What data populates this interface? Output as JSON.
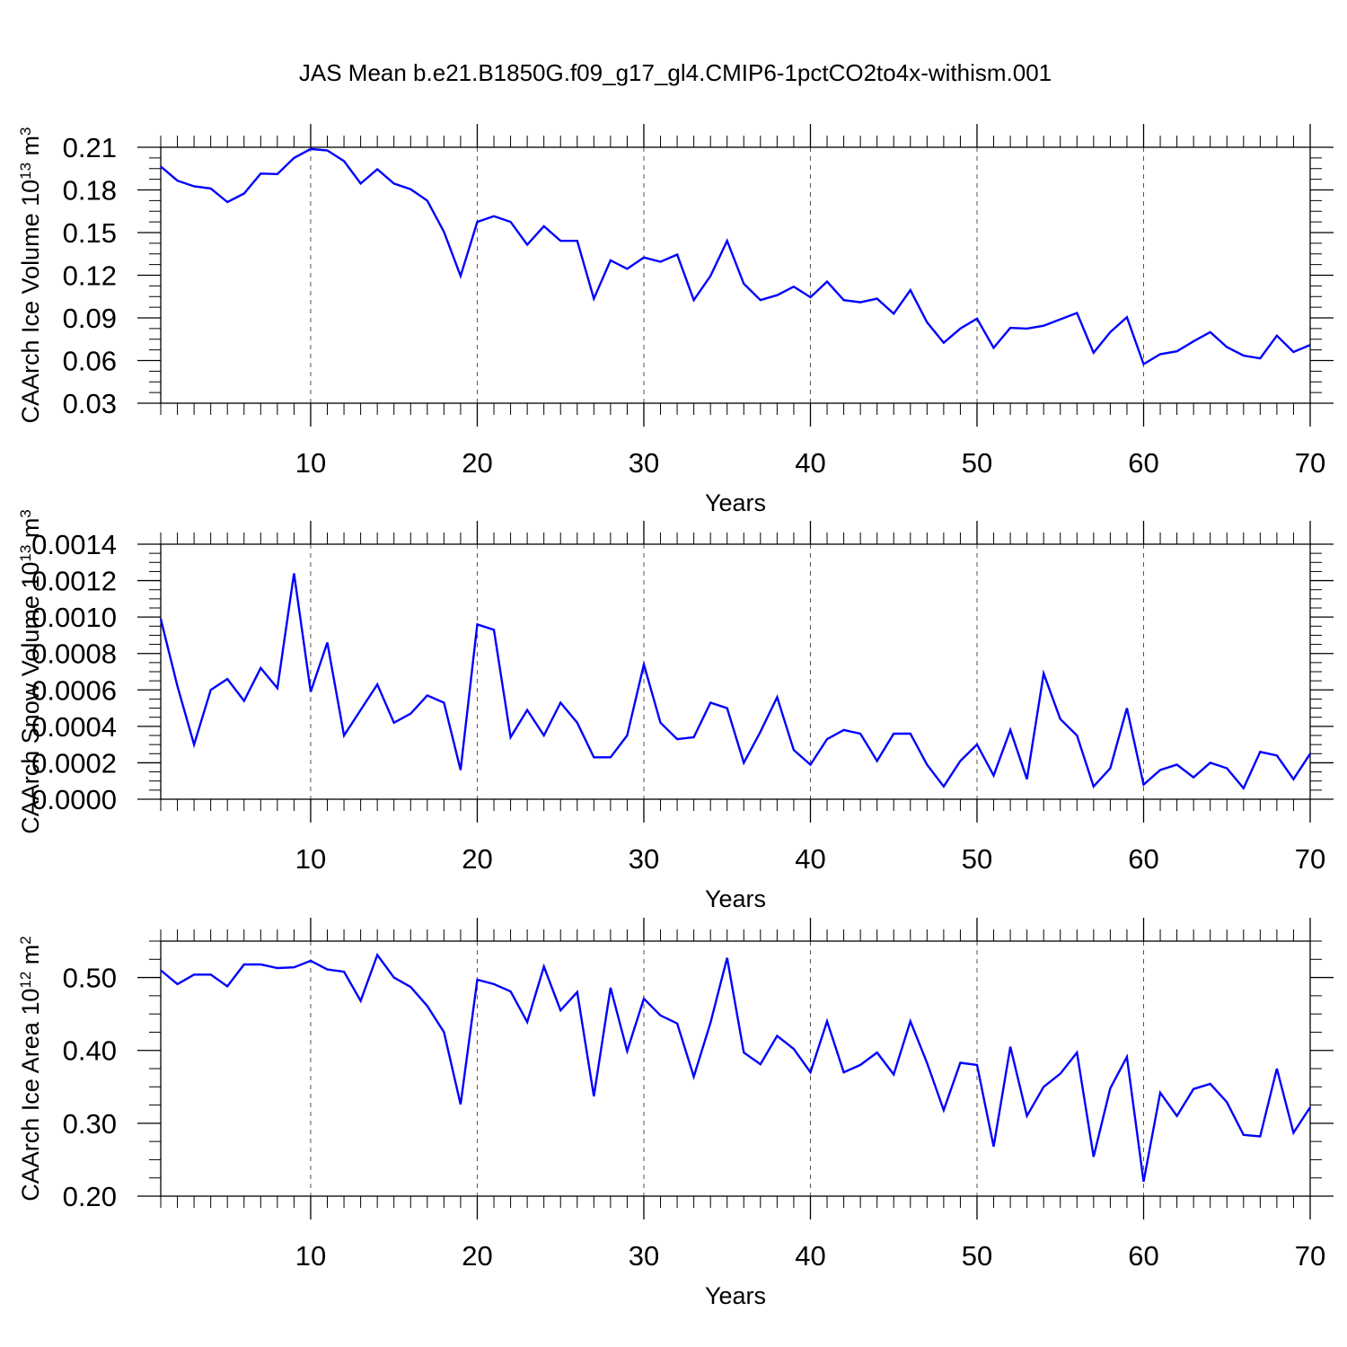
{
  "title": "JAS Mean b.e21.B1850G.f09_g17_gl4.CMIP6-1pctCO2to4x-withism.001",
  "colors": {
    "line": "#0000ff",
    "axis": "#000000",
    "grid": "#555555"
  },
  "chart_data": [
    {
      "type": "line",
      "ylabel_main": "CAArch Ice Volume 10",
      "ylabel_exp": "13",
      "ylabel_unit": " m",
      "ylabel_unit_exp": "3",
      "xlabel": "Years",
      "xlim": [
        1,
        70
      ],
      "ylim": [
        0.03,
        0.21
      ],
      "yticks": [
        "0.03",
        "0.06",
        "0.09",
        "0.12",
        "0.15",
        "0.18",
        "0.21"
      ],
      "xticks": [
        "10",
        "20",
        "30",
        "40",
        "50",
        "60",
        "70"
      ],
      "grid": "dashed vertical at x ticks",
      "series": [
        {
          "x_start": 1,
          "values": [
            0.1965,
            0.1865,
            0.1825,
            0.181,
            0.1715,
            0.1775,
            0.1915,
            0.1912,
            0.2025,
            0.2088,
            0.2078,
            0.2003,
            0.1845,
            0.1945,
            0.1845,
            0.1805,
            0.1725,
            0.1505,
            0.1195,
            0.1575,
            0.1615,
            0.1575,
            0.1415,
            0.1545,
            0.1442,
            0.1442,
            0.1035,
            0.1305,
            0.1245,
            0.1325,
            0.1295,
            0.1345,
            0.1025,
            0.1195,
            0.1442,
            0.114,
            0.1025,
            0.106,
            0.112,
            0.1045,
            0.1155,
            0.1025,
            0.101,
            0.1035,
            0.093,
            0.1095,
            0.087,
            0.0725,
            0.0825,
            0.0895,
            0.069,
            0.083,
            0.0825,
            0.0845,
            0.089,
            0.0935,
            0.0655,
            0.08,
            0.0905,
            0.0575,
            0.0645,
            0.0665,
            0.0735,
            0.08,
            0.0695,
            0.0635,
            0.0615,
            0.0775,
            0.066,
            0.071
          ]
        }
      ]
    },
    {
      "type": "line",
      "ylabel_main": "CAArch Snow Volume 10",
      "ylabel_exp": "13",
      "ylabel_unit": " m",
      "ylabel_unit_exp": "3",
      "xlabel": "Years",
      "xlim": [
        1,
        70
      ],
      "ylim": [
        0.0,
        0.0014
      ],
      "yticks": [
        "0.0000",
        "0.0002",
        "0.0004",
        "0.0006",
        "0.0008",
        "0.0010",
        "0.0012",
        "0.0014"
      ],
      "xticks": [
        "10",
        "20",
        "30",
        "40",
        "50",
        "60",
        "70"
      ],
      "grid": "dashed vertical at x ticks",
      "series": [
        {
          "x_start": 1,
          "values": [
            0.00099,
            0.00062,
            0.0003,
            0.0006,
            0.00066,
            0.00054,
            0.00072,
            0.00061,
            0.00124,
            0.00059,
            0.00086,
            0.00035,
            0.00049,
            0.00063,
            0.00042,
            0.00047,
            0.00057,
            0.00053,
            0.00016,
            0.00096,
            0.00093,
            0.00034,
            0.00049,
            0.00035,
            0.00053,
            0.00042,
            0.00023,
            0.00023,
            0.00035,
            0.00074,
            0.00042,
            0.00033,
            0.00034,
            0.00053,
            0.0005,
            0.0002,
            0.00037,
            0.00056,
            0.00027,
            0.00019,
            0.00033,
            0.00038,
            0.00036,
            0.00021,
            0.00036,
            0.00036,
            0.00019,
            7e-05,
            0.00021,
            0.0003,
            0.00013,
            0.00038,
            0.00011,
            0.00069,
            0.00044,
            0.00035,
            7e-05,
            0.00017,
            0.0005,
            8e-05,
            0.00016,
            0.00019,
            0.00012,
            0.0002,
            0.00017,
            6e-05,
            0.00026,
            0.00024,
            0.00011,
            0.00025
          ]
        }
      ]
    },
    {
      "type": "line",
      "ylabel_main": "CAArch Ice Area 10",
      "ylabel_exp": "12",
      "ylabel_unit": " m",
      "ylabel_unit_exp": "2",
      "xlabel": "Years",
      "xlim": [
        1,
        70
      ],
      "ylim": [
        0.2,
        0.55
      ],
      "yticks": [
        "0.20",
        "0.30",
        "0.40",
        "0.50"
      ],
      "xticks": [
        "10",
        "20",
        "30",
        "40",
        "50",
        "60",
        "70"
      ],
      "grid": "dashed vertical at x ticks",
      "series": [
        {
          "x_start": 1,
          "values": [
            0.51,
            0.491,
            0.504,
            0.504,
            0.488,
            0.518,
            0.518,
            0.513,
            0.514,
            0.523,
            0.511,
            0.508,
            0.468,
            0.531,
            0.5,
            0.487,
            0.461,
            0.425,
            0.326,
            0.497,
            0.491,
            0.481,
            0.439,
            0.515,
            0.455,
            0.48,
            0.337,
            0.486,
            0.399,
            0.471,
            0.448,
            0.437,
            0.364,
            0.438,
            0.527,
            0.397,
            0.381,
            0.42,
            0.402,
            0.37,
            0.44,
            0.37,
            0.38,
            0.397,
            0.367,
            0.44,
            0.383,
            0.318,
            0.383,
            0.38,
            0.268,
            0.405,
            0.31,
            0.35,
            0.368,
            0.397,
            0.254,
            0.348,
            0.391,
            0.22,
            0.342,
            0.31,
            0.347,
            0.354,
            0.329,
            0.284,
            0.282,
            0.375,
            0.287,
            0.322
          ]
        }
      ]
    }
  ]
}
